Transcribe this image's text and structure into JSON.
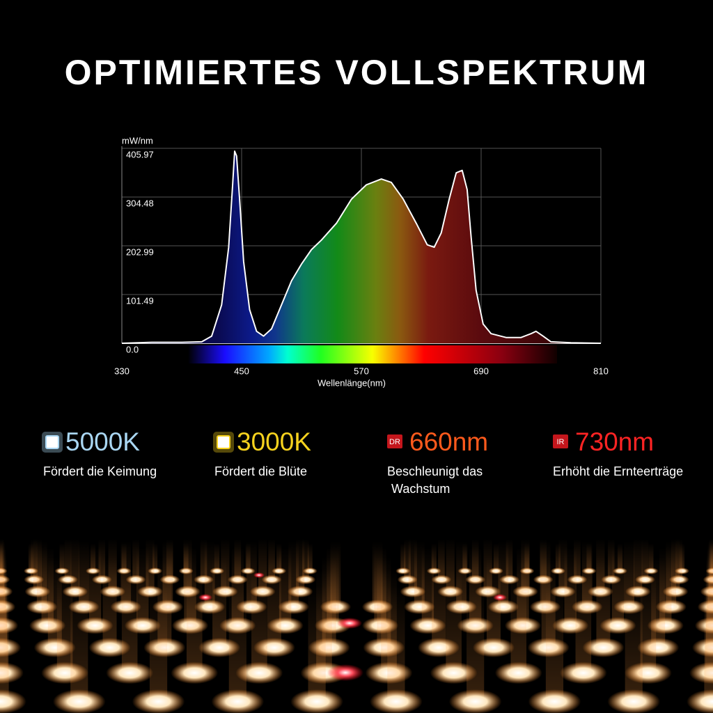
{
  "title": "OPTIMIERTES VOLLSPEKTRUM",
  "chart_data": {
    "type": "area",
    "y_label": "mW/nm",
    "x_label": "Wellenlänge(nm)",
    "xlim": [
      330,
      810
    ],
    "xticks": [
      330,
      450,
      570,
      690,
      810
    ],
    "ylim": [
      0,
      405.97
    ],
    "yticks": [
      {
        "value": 0,
        "label": "0.0"
      },
      101.49,
      202.99,
      304.48,
      405.97
    ],
    "grid": true,
    "x": [
      330,
      360,
      390,
      410,
      420,
      430,
      437,
      441,
      443,
      445,
      448,
      452,
      458,
      465,
      472,
      480,
      490,
      500,
      510,
      520,
      530,
      545,
      560,
      575,
      590,
      600,
      612,
      625,
      636,
      643,
      650,
      658,
      665,
      671,
      676,
      680,
      685,
      692,
      700,
      715,
      730,
      740,
      745,
      752,
      760,
      780,
      810
    ],
    "values": [
      0,
      2,
      2,
      3,
      15,
      80,
      200,
      330,
      400,
      390,
      300,
      170,
      70,
      25,
      15,
      30,
      80,
      130,
      165,
      195,
      215,
      250,
      300,
      330,
      342,
      335,
      300,
      250,
      205,
      200,
      230,
      300,
      355,
      360,
      320,
      220,
      110,
      40,
      20,
      12,
      12,
      20,
      25,
      15,
      3,
      1,
      0
    ]
  },
  "features": [
    {
      "value": "5000K",
      "color": "#a9d6f2",
      "description": [
        "Fördert die Keimung"
      ]
    },
    {
      "value": "3000K",
      "color": "#f6d21e",
      "description": [
        "Fördert die Blüte"
      ]
    },
    {
      "badge": "DR",
      "value": "660nm",
      "color": "#ff5a1c",
      "description": [
        "Beschleunigt das",
        "Wachstum"
      ]
    },
    {
      "badge": "IR",
      "value": "730nm",
      "color": "#ff2424",
      "description": [
        "Erhöht die Ernteerträge"
      ]
    }
  ]
}
